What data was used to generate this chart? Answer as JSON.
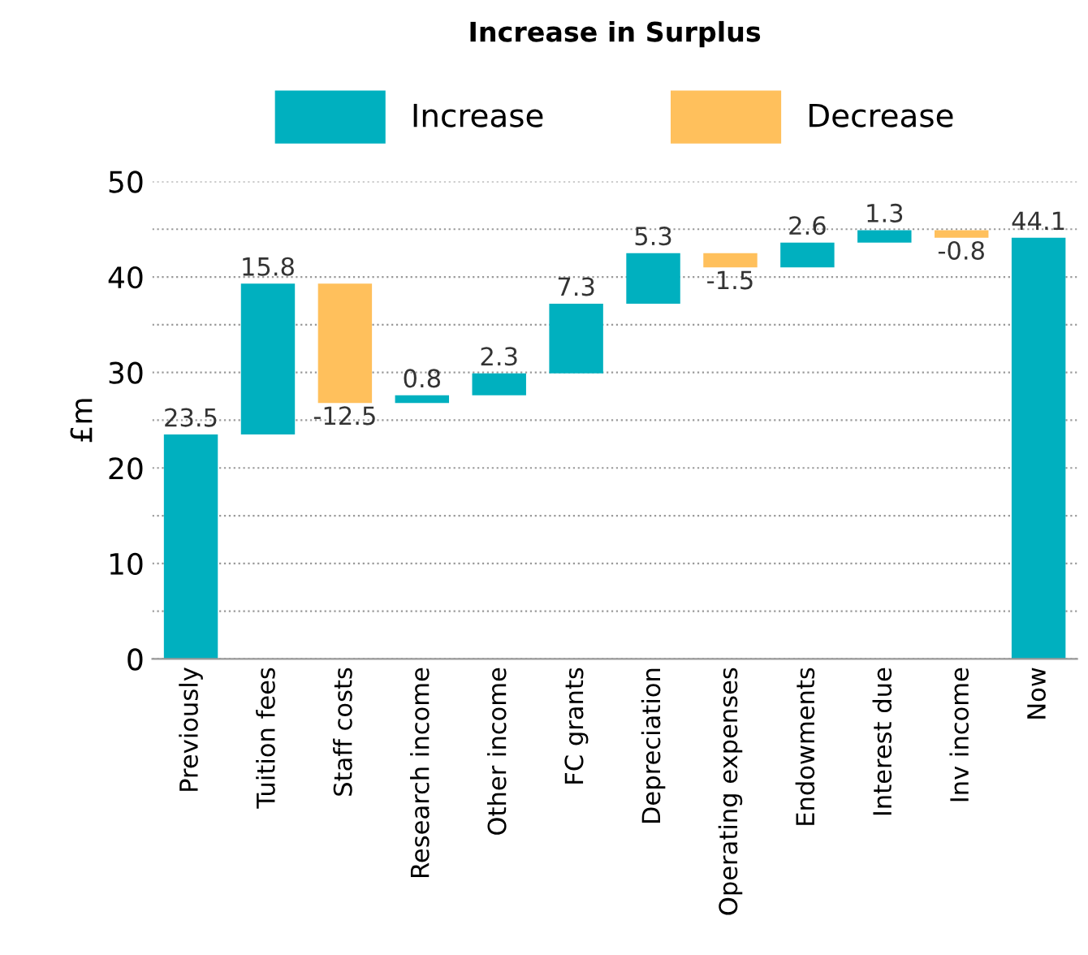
{
  "chart_data": {
    "type": "bar",
    "title": "Increase in Surplus",
    "ylabel": "£m",
    "categories": [
      "Previously",
      "Tuition fees",
      "Staff costs",
      "Research income",
      "Other income",
      "FC grants",
      "Depreciation",
      "Operating expenses",
      "Endowments",
      "Interest due",
      "Inv income",
      "Now"
    ],
    "series": [
      {
        "name": "Increase",
        "color": "#00b0bf",
        "values": [
          23.5,
          15.8,
          null,
          0.8,
          2.3,
          7.3,
          5.3,
          null,
          2.6,
          1.3,
          null,
          44.1
        ],
        "base": [
          0,
          23.5,
          null,
          26.8,
          27.6,
          29.9,
          37.2,
          null,
          41.0,
          43.6,
          null,
          0
        ]
      },
      {
        "name": "Decrease",
        "color": "#ffc05c",
        "values": [
          null,
          null,
          -12.5,
          null,
          null,
          null,
          null,
          -1.5,
          null,
          null,
          -0.8,
          null
        ],
        "base": [
          null,
          null,
          39.3,
          null,
          null,
          null,
          null,
          42.5,
          null,
          null,
          44.9,
          null
        ]
      }
    ],
    "ylim": [
      0,
      50
    ],
    "yticks": [
      0,
      {
        "value": 5,
        "label": null
      },
      10,
      {
        "value": 15,
        "label": null
      },
      20,
      {
        "value": 25,
        "label": null
      },
      30,
      {
        "value": 35,
        "label": null
      },
      40,
      {
        "value": 45,
        "label": null
      },
      50
    ],
    "data_labels": true,
    "grid": "y",
    "legend": "top"
  }
}
